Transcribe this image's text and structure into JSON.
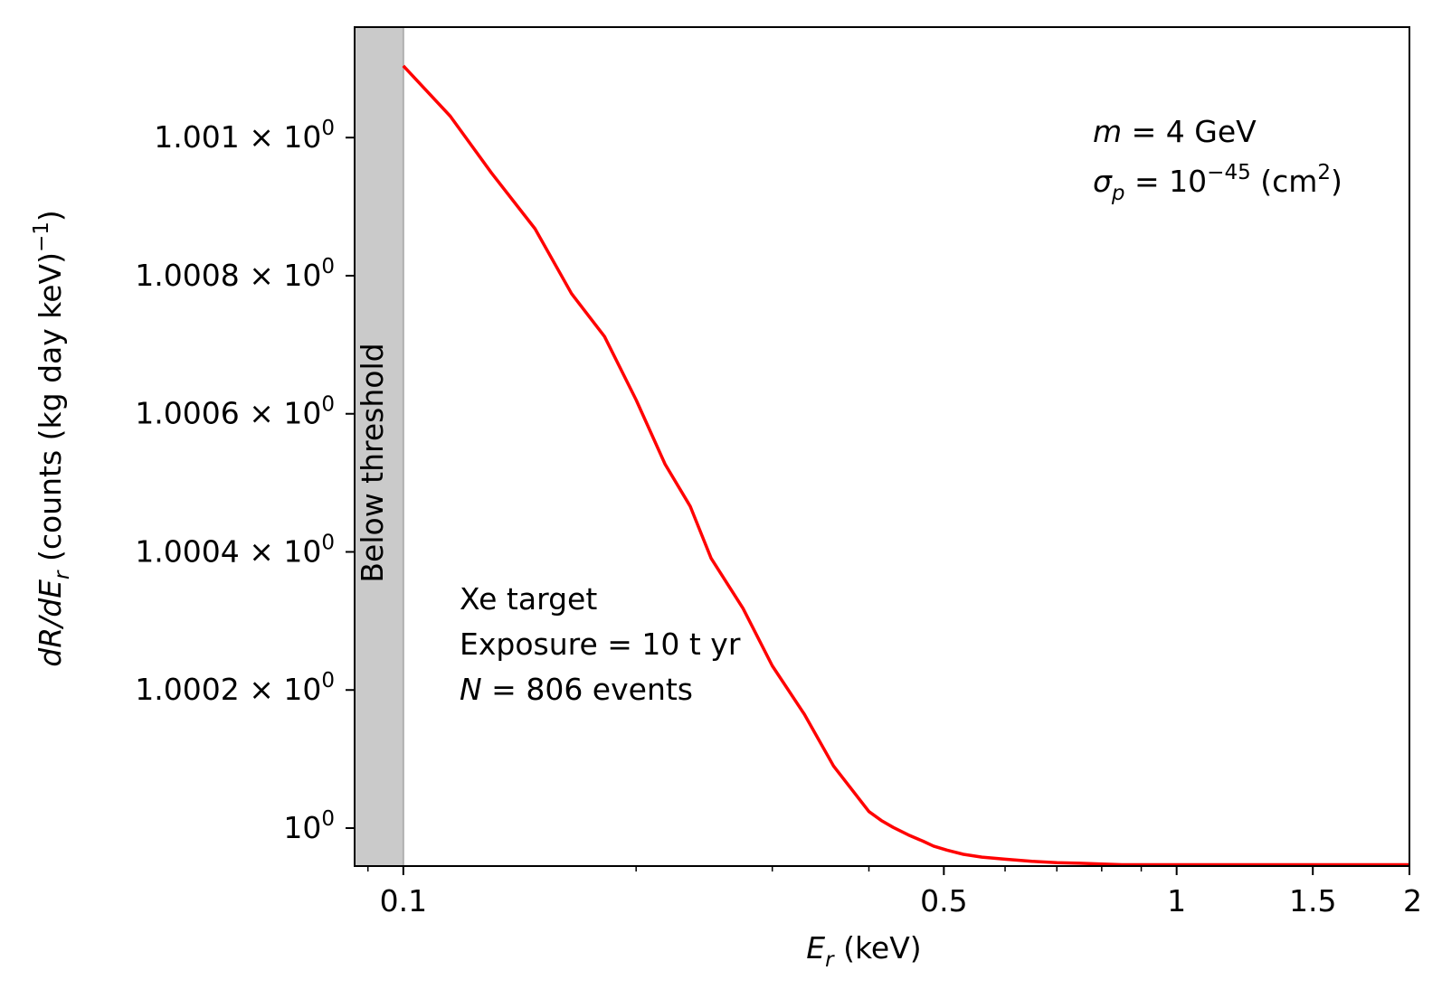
{
  "chart_data": {
    "type": "line",
    "xscale": "log",
    "xlim": [
      0.0865,
      2.0
    ],
    "ylim": [
      0.999945,
      1.00116
    ],
    "grid": false,
    "title": "",
    "xlabel": {
      "var": "E",
      "sub": "r",
      "unit": "(keV)"
    },
    "ylabel": {
      "prefix": "dR/dE",
      "sub": "r",
      "mid": "(counts (kg day keV)",
      "sup": "−1",
      "end": ")"
    },
    "x_ticks": [
      {
        "value": 0.1,
        "label": "0.1"
      },
      {
        "value": 0.5,
        "label": "0.5"
      },
      {
        "value": 1,
        "label": "1"
      },
      {
        "value": 1.5,
        "label": "1.5"
      },
      {
        "value": 2,
        "label": "2"
      }
    ],
    "x_minor_ticks": [
      0.09,
      0.2,
      0.3,
      0.4,
      0.6,
      0.7,
      0.8,
      0.9
    ],
    "y_ticks": [
      {
        "value": 1.0,
        "base": "10",
        "exp": "0",
        "label": "10⁰"
      },
      {
        "value": 1.0002,
        "mantissa": "1.0002",
        "times": "×",
        "base": "10",
        "exp": "0",
        "label": "1.0002 × 10⁰"
      },
      {
        "value": 1.0004,
        "mantissa": "1.0004",
        "times": "×",
        "base": "10",
        "exp": "0",
        "label": "1.0004 × 10⁰"
      },
      {
        "value": 1.0006,
        "mantissa": "1.0006",
        "times": "×",
        "base": "10",
        "exp": "0",
        "label": "1.0006 × 10⁰"
      },
      {
        "value": 1.0008,
        "mantissa": "1.0008",
        "times": "×",
        "base": "10",
        "exp": "0",
        "label": "1.0008 × 10⁰"
      },
      {
        "value": 1.001,
        "mantissa": "1.001",
        "times": "×",
        "base": "10",
        "exp": "0",
        "label": "1.001 × 10⁰"
      }
    ],
    "threshold_region": {
      "x_from": 0.0865,
      "x_to": 0.1,
      "label": "Below threshold",
      "color": "#cacaca"
    },
    "series": [
      {
        "color": "#ff0000",
        "x": [
          0.1,
          0.115,
          0.13,
          0.148,
          0.165,
          0.182,
          0.2,
          0.218,
          0.235,
          0.25,
          0.275,
          0.3,
          0.33,
          0.36,
          0.38,
          0.4,
          0.415,
          0.43,
          0.45,
          0.47,
          0.485,
          0.505,
          0.53,
          0.56,
          0.6,
          0.65,
          0.7,
          0.75,
          0.8,
          0.85,
          0.9,
          1.0,
          1.1,
          1.2,
          1.5,
          2.0
        ],
        "y": [
          1.001104,
          1.001031,
          1.000949,
          1.000868,
          1.000774,
          1.000712,
          1.00062,
          1.000527,
          1.000466,
          1.000391,
          1.000318,
          1.000235,
          1.000165,
          1.00009,
          1.000056,
          1.000024,
          1.000011,
          1.000001,
          0.99999,
          0.999981,
          0.999974,
          0.999968,
          0.999962,
          0.999958,
          0.999955,
          0.999952,
          0.99995,
          0.999949,
          0.999948,
          0.999947,
          0.999947,
          0.999947,
          0.999947,
          0.999947,
          0.999947,
          0.999947
        ]
      }
    ],
    "annotations": {
      "mass": {
        "var": "m",
        "eq": " = ",
        "value": "4 GeV"
      },
      "sigma": {
        "var": "σ",
        "sub": "p",
        "eq": " = ",
        "base": "10",
        "exp": "−45",
        "unit": " (cm",
        "unit_sup": "2",
        "unit_end": ")"
      },
      "target": "Xe target",
      "exposure": "Exposure = 10 t yr",
      "events": {
        "var": "N",
        "eq": " = ",
        "value": "806 events"
      }
    }
  }
}
